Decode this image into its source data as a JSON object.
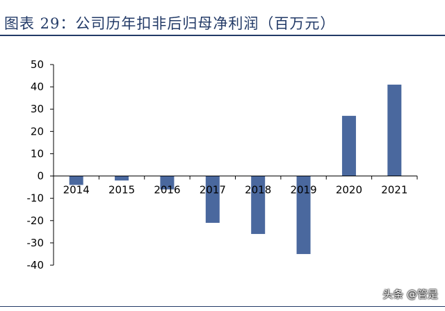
{
  "header": {
    "title": "图表 29：公司历年扣非后归母净利润（百万元）"
  },
  "watermark": "头条 @管是",
  "colors": {
    "bar": "#4a689e",
    "rule": "#223a67",
    "axis": "#000000"
  },
  "chart_data": {
    "type": "bar",
    "title": "",
    "xlabel": "",
    "ylabel": "",
    "categories": [
      "2014",
      "2015",
      "2016",
      "2017",
      "2018",
      "2019",
      "2020",
      "2021"
    ],
    "values": [
      -4,
      -2,
      -6,
      -21,
      -26,
      -35,
      27,
      41
    ],
    "ylim": [
      -40,
      50
    ],
    "yticks": [
      50,
      40,
      30,
      20,
      10,
      0,
      -10,
      -20,
      -30,
      -40
    ],
    "grid": false,
    "legend": "none"
  }
}
